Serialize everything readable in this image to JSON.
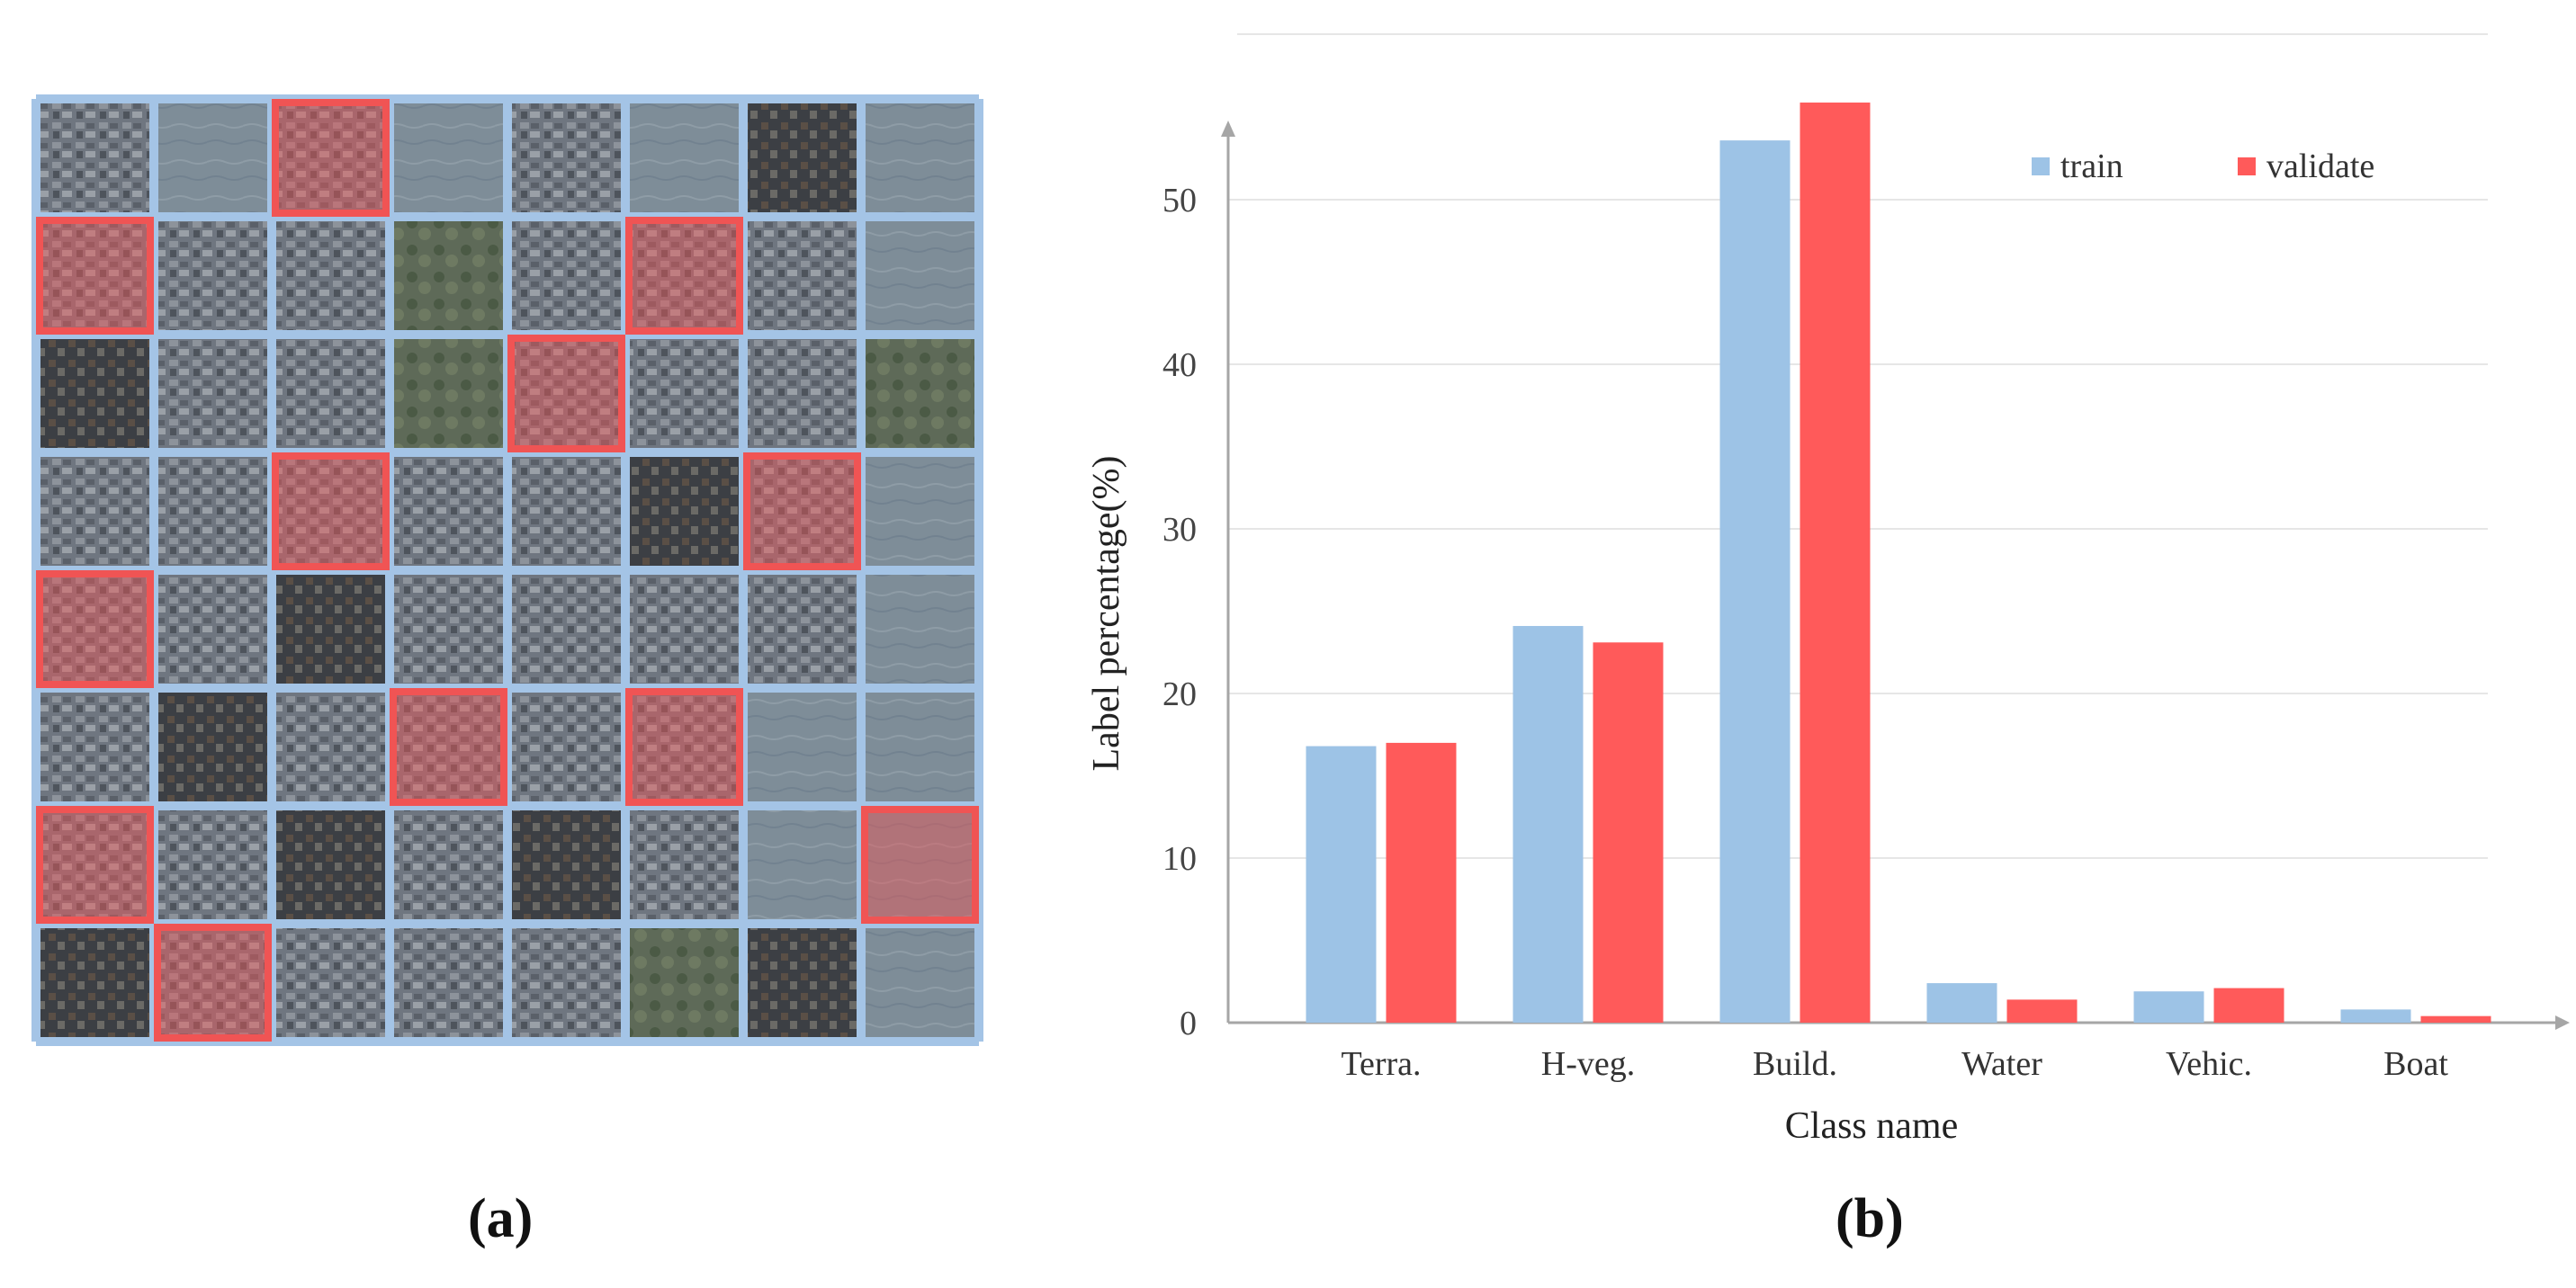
{
  "panels": {
    "a_label": "(a)",
    "b_label": "(b)"
  },
  "tile_grid": {
    "rows": 8,
    "cols": 8,
    "grid_color": "#a4c4e6",
    "validate_color": "#f05454",
    "validation_tiles": [
      [
        0,
        2
      ],
      [
        1,
        0
      ],
      [
        1,
        5
      ],
      [
        2,
        4
      ],
      [
        3,
        2
      ],
      [
        3,
        6
      ],
      [
        4,
        0
      ],
      [
        5,
        3
      ],
      [
        5,
        5
      ],
      [
        6,
        0
      ],
      [
        6,
        7
      ],
      [
        7,
        1
      ]
    ]
  },
  "chart_data": {
    "type": "bar",
    "title": "",
    "xlabel": "Class name",
    "ylabel": "Label percentage(%)",
    "categories": [
      "Terra.",
      "H-veg.",
      "Build.",
      "Water",
      "Vehic.",
      "Boat"
    ],
    "series": [
      {
        "name": "train",
        "color": "#9dc3e6",
        "values": [
          16.8,
          24.1,
          53.6,
          2.4,
          1.9,
          0.8
        ]
      },
      {
        "name": "validate",
        "color": "#ff5a5a",
        "values": [
          17.0,
          23.1,
          55.9,
          1.4,
          2.1,
          0.4
        ]
      }
    ],
    "ylim": [
      0,
      60
    ],
    "yticks": [
      0,
      10,
      20,
      30,
      40,
      50
    ],
    "grid": true,
    "legend": "top-right"
  }
}
